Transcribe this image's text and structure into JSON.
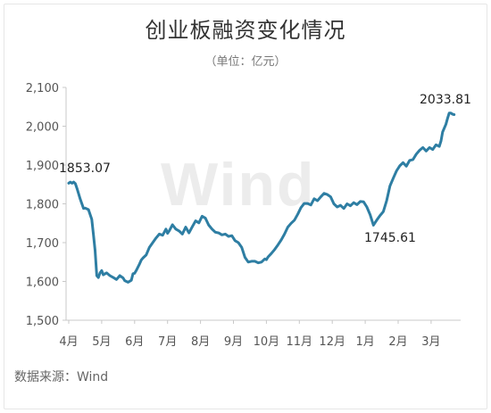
{
  "chart_data": {
    "type": "line",
    "title": "创业板融资变化情况",
    "subtitle": "（单位：亿元）",
    "source": "数据来源：Wind",
    "watermark": "Wind",
    "ylim": [
      1500,
      2100
    ],
    "yticks": [
      "2,100",
      "2,000",
      "1,900",
      "1,800",
      "1,700",
      "1,600",
      "1,500"
    ],
    "ytick_values": [
      2100,
      2000,
      1900,
      1800,
      1700,
      1600,
      1500
    ],
    "months": [
      "4月",
      "5月",
      "6月",
      "7月",
      "8月",
      "9月",
      "10月",
      "11月",
      "12月",
      "1月",
      "2月",
      "3月"
    ],
    "grid": false,
    "line_color": "#2e7ea3",
    "series": [
      {
        "x": [
          0.0,
          0.05,
          0.1,
          0.15,
          0.2,
          0.25,
          0.35,
          0.45,
          0.5,
          0.6,
          0.7,
          0.75,
          0.8,
          0.85,
          0.9,
          0.95,
          1.0,
          1.05,
          1.15,
          1.25,
          1.35,
          1.45,
          1.55,
          1.65,
          1.7,
          1.8,
          1.9,
          1.95,
          2.0,
          2.05,
          2.15,
          2.2,
          2.25,
          2.35,
          2.45,
          2.55,
          2.65,
          2.75,
          2.85,
          2.95,
          3.0,
          3.05,
          3.15,
          3.25,
          3.35,
          3.45,
          3.55,
          3.65,
          3.75,
          3.85,
          3.95,
          4.05,
          4.15,
          4.25,
          4.35,
          4.45,
          4.55,
          4.65,
          4.75,
          4.85,
          4.95,
          5.05,
          5.15,
          5.25,
          5.35,
          5.45,
          5.55,
          5.65,
          5.75,
          5.85,
          5.95,
          6.0,
          6.05,
          6.15,
          6.25,
          6.35,
          6.45,
          6.55,
          6.65,
          6.75,
          6.85,
          6.95,
          7.05,
          7.15,
          7.25,
          7.35,
          7.45,
          7.55,
          7.65,
          7.75,
          7.85,
          7.95,
          8.05,
          8.15,
          8.25,
          8.35,
          8.45,
          8.55,
          8.65,
          8.75,
          8.85,
          8.95,
          9.05,
          9.15,
          9.25,
          9.35,
          9.45,
          9.5,
          9.55,
          9.65,
          9.75,
          9.85,
          9.95,
          10.05,
          10.15,
          10.25,
          10.35,
          10.45,
          10.55,
          10.65,
          10.75,
          10.85,
          10.95,
          11.05,
          11.15,
          11.25,
          11.3,
          11.35,
          11.45,
          11.5,
          11.55,
          11.6,
          11.65,
          11.7
        ],
        "values": [
          1853,
          1856,
          1853,
          1856,
          1852,
          1840,
          1812,
          1788,
          1789,
          1785,
          1760,
          1720,
          1680,
          1615,
          1610,
          1622,
          1628,
          1617,
          1622,
          1615,
          1610,
          1605,
          1615,
          1609,
          1602,
          1598,
          1603,
          1620,
          1621,
          1628,
          1645,
          1655,
          1660,
          1668,
          1688,
          1700,
          1712,
          1722,
          1719,
          1735,
          1724,
          1730,
          1746,
          1735,
          1730,
          1722,
          1740,
          1725,
          1741,
          1756,
          1751,
          1768,
          1763,
          1745,
          1735,
          1727,
          1725,
          1720,
          1722,
          1716,
          1718,
          1705,
          1700,
          1688,
          1662,
          1650,
          1652,
          1652,
          1648,
          1650,
          1658,
          1656,
          1663,
          1672,
          1682,
          1694,
          1707,
          1722,
          1740,
          1750,
          1758,
          1773,
          1790,
          1801,
          1801,
          1797,
          1813,
          1808,
          1818,
          1827,
          1824,
          1818,
          1800,
          1792,
          1796,
          1788,
          1800,
          1795,
          1803,
          1798,
          1806,
          1805,
          1792,
          1772,
          1745,
          1758,
          1770,
          1775,
          1780,
          1808,
          1846,
          1866,
          1885,
          1898,
          1906,
          1897,
          1912,
          1914,
          1928,
          1938,
          1945,
          1936,
          1945,
          1940,
          1952,
          1948,
          1962,
          1985,
          2005,
          2020,
          2034,
          2034,
          2031,
          2030
        ]
      }
    ],
    "annotations": [
      {
        "text": "1853.07",
        "value": 1853.07
      },
      {
        "text": "1745.61",
        "value": 1745.61
      },
      {
        "text": "2033.81",
        "value": 2033.81
      }
    ]
  }
}
